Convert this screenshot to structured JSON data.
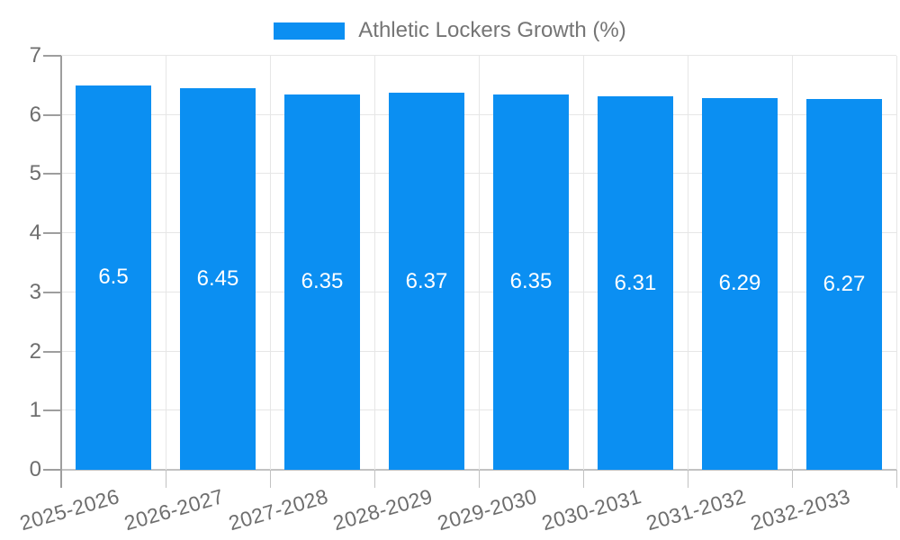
{
  "chart_data": {
    "type": "bar",
    "title": "Athletic Lockers Growth (%)",
    "categories": [
      "2025-2026",
      "2026-2027",
      "2027-2028",
      "2028-2029",
      "2029-2030",
      "2030-2031",
      "2031-2032",
      "2032-2033"
    ],
    "values": [
      6.5,
      6.45,
      6.35,
      6.37,
      6.35,
      6.31,
      6.29,
      6.27
    ],
    "value_labels": [
      "6.5",
      "6.45",
      "6.35",
      "6.37",
      "6.35",
      "6.31",
      "6.29",
      "6.27"
    ],
    "xlabel": "",
    "ylabel": "",
    "ylim": [
      0,
      7
    ],
    "yticks": [
      "0",
      "1",
      "2",
      "3",
      "4",
      "5",
      "6",
      "7"
    ],
    "grid": true,
    "legend_position": "top-center",
    "colors": {
      "bar": "#0b8ff2",
      "bar_label": "#ffffff",
      "grid_line": "#e6e6e6",
      "baseline": "#c2c2c2",
      "axis_line": "#9e9e9e",
      "tick_text": "#6e6e6e",
      "legend_text": "#757575",
      "background": "#ffffff"
    }
  }
}
